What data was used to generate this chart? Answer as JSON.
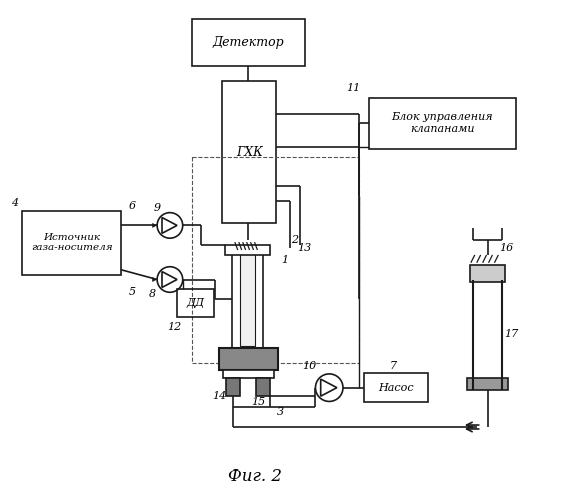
{
  "title": "Фиг. 2",
  "bg_color": "#ffffff",
  "line_color": "#000000",
  "labels": {
    "detector": "Детектор",
    "ghk": "ГХК",
    "source": "Источник\nгаза-носителя",
    "dd": "ДД",
    "nasos": "Насос",
    "blok": "Блок управления\nклапанами"
  }
}
